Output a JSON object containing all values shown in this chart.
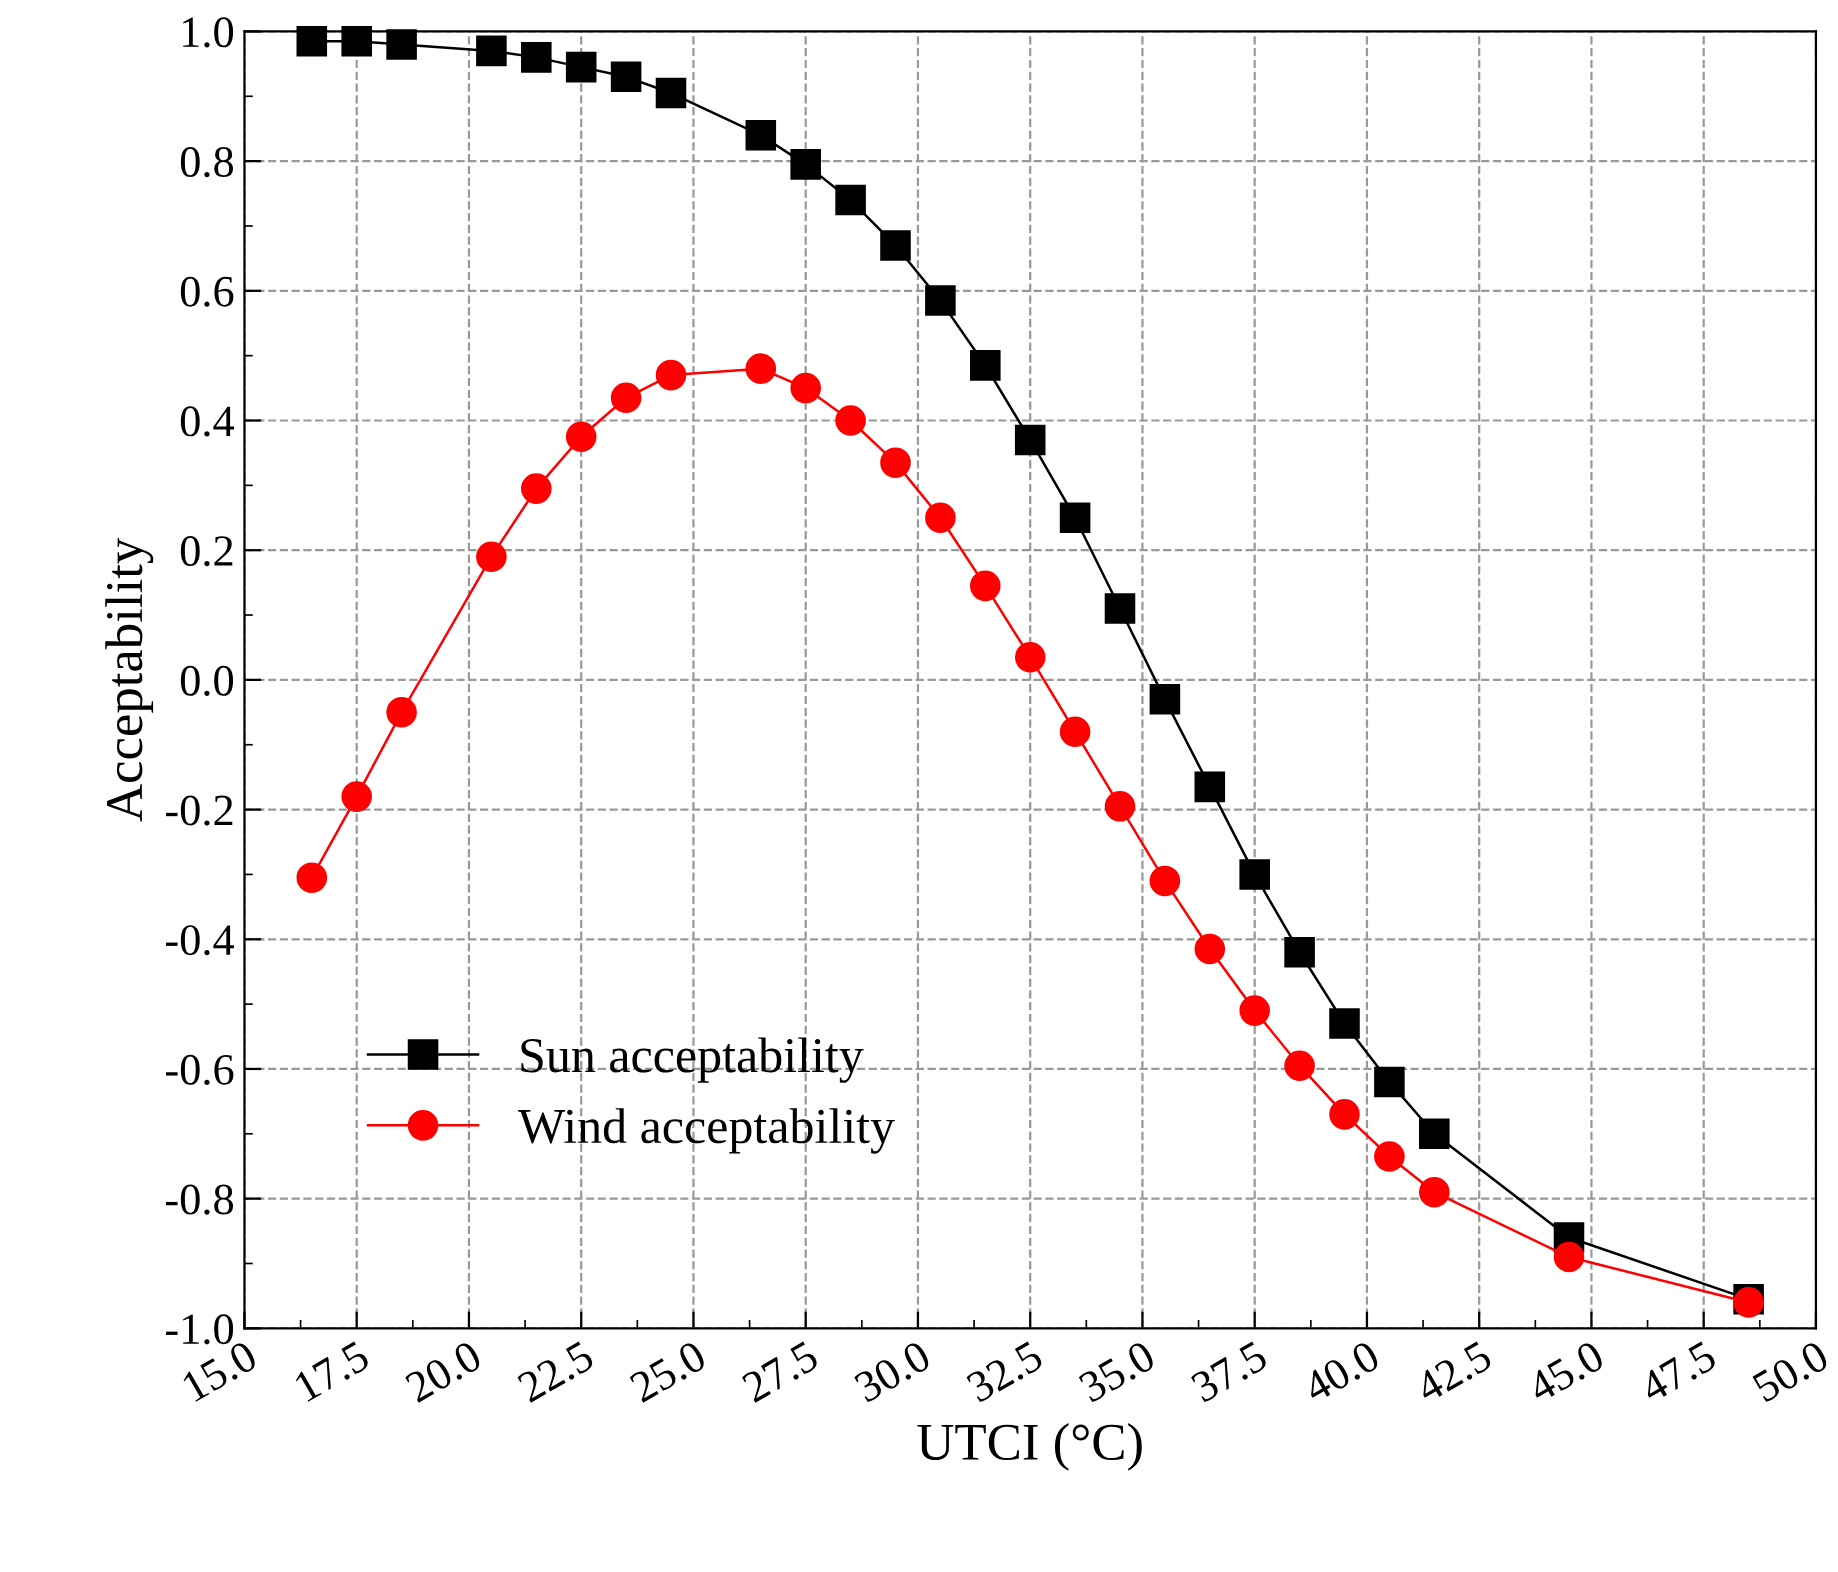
{
  "chart_data": {
    "type": "line",
    "xlabel": "UTCI (°C)",
    "ylabel": "Acceptability",
    "xlim": [
      15,
      50
    ],
    "ylim": [
      -1,
      1
    ],
    "xticks": [
      {
        "value": 15,
        "label": "15.0"
      },
      {
        "value": 17.5,
        "label": "17.5"
      },
      {
        "value": 20,
        "label": "20.0"
      },
      {
        "value": 22.5,
        "label": "22.5"
      },
      {
        "value": 25,
        "label": "25.0"
      },
      {
        "value": 27.5,
        "label": "27.5"
      },
      {
        "value": 30,
        "label": "30.0"
      },
      {
        "value": 32.5,
        "label": "32.5"
      },
      {
        "value": 35,
        "label": "35.0"
      },
      {
        "value": 37.5,
        "label": "37.5"
      },
      {
        "value": 40,
        "label": "40.0"
      },
      {
        "value": 42.5,
        "label": "42.5"
      },
      {
        "value": 45,
        "label": "45.0"
      },
      {
        "value": 47.5,
        "label": "47.5"
      },
      {
        "value": 50,
        "label": "50.0"
      }
    ],
    "yticks": [
      {
        "value": -1,
        "label": "-1.0"
      },
      {
        "value": -0.8,
        "label": "-0.8"
      },
      {
        "value": -0.6,
        "label": "-0.6"
      },
      {
        "value": -0.4,
        "label": "-0.4"
      },
      {
        "value": -0.2,
        "label": "-0.2"
      },
      {
        "value": 0,
        "label": "0.0"
      },
      {
        "value": 0.2,
        "label": "0.2"
      },
      {
        "value": 0.4,
        "label": "0.4"
      },
      {
        "value": 0.6,
        "label": "0.6"
      },
      {
        "value": 0.8,
        "label": "0.8"
      },
      {
        "value": 1,
        "label": "1.0"
      }
    ],
    "x": [
      16.5,
      17.5,
      18.5,
      20.5,
      21.5,
      22.5,
      23.5,
      24.5,
      26.5,
      27.5,
      28.5,
      29.5,
      30.5,
      31.5,
      32.5,
      33.5,
      34.5,
      35.5,
      36.5,
      37.5,
      38.5,
      39.5,
      40.5,
      41.5,
      44.5,
      48.5
    ],
    "grid": true,
    "legend": "bottom left",
    "series": [
      {
        "name": "Sun acceptability",
        "color": "#000000",
        "marker": "square",
        "values": [
          0.985,
          0.985,
          0.98,
          0.97,
          0.96,
          0.945,
          0.93,
          0.905,
          0.84,
          0.795,
          0.74,
          0.67,
          0.585,
          0.485,
          0.37,
          0.25,
          0.11,
          -0.03,
          -0.165,
          -0.3,
          -0.42,
          -0.53,
          -0.62,
          -0.7,
          -0.86,
          -0.955
        ]
      },
      {
        "name": "Wind acceptability",
        "color": "#ff0000",
        "marker": "circle",
        "values": [
          -0.305,
          -0.18,
          -0.05,
          0.19,
          0.295,
          0.375,
          0.435,
          0.47,
          0.48,
          0.45,
          0.4,
          0.335,
          0.25,
          0.145,
          0.035,
          -0.08,
          -0.195,
          -0.31,
          -0.415,
          -0.51,
          -0.595,
          -0.67,
          -0.735,
          -0.79,
          -0.89,
          -0.96
        ]
      }
    ]
  }
}
